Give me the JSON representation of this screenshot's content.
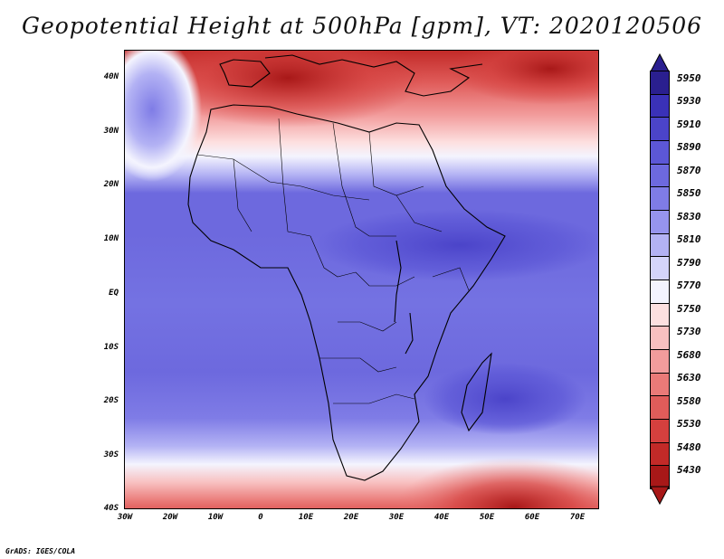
{
  "title": "Geopotential Height at 500hPa [gpm], VT: 2020120506",
  "credit": "GrADS: IGES/COLA",
  "latitude_labels": [
    "40N",
    "30N",
    "20N",
    "10N",
    "EQ",
    "10S",
    "20S",
    "30S",
    "40S"
  ],
  "longitude_labels": [
    "30W",
    "20W",
    "10W",
    "0",
    "10E",
    "20E",
    "30E",
    "40E",
    "50E",
    "60E",
    "70E"
  ],
  "colorbar": {
    "labels": [
      "5950",
      "5930",
      "5910",
      "5890",
      "5870",
      "5850",
      "5830",
      "5810",
      "5790",
      "5770",
      "5750",
      "5730",
      "5680",
      "5630",
      "5580",
      "5530",
      "5480",
      "5430"
    ],
    "colors": [
      "#2a1f8f",
      "#3a31b8",
      "#4b44c9",
      "#5c57d6",
      "#6d69de",
      "#7f7ce6",
      "#9694ee",
      "#b3b2f4",
      "#d4d4fa",
      "#f4f4fe",
      "#fde0e0",
      "#f8c0c0",
      "#f29c9c",
      "#ea7a78",
      "#e05c5a",
      "#d4403e",
      "#c22a28",
      "#a81818"
    ]
  }
}
